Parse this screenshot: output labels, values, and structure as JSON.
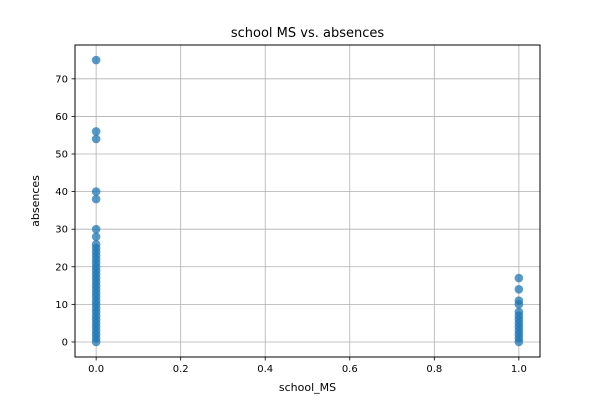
{
  "chart_data": {
    "type": "scatter",
    "title": "school MS vs. absences",
    "xlabel": "school_MS",
    "ylabel": "absences",
    "xlim": [
      -0.05,
      1.05
    ],
    "ylim": [
      -4,
      79
    ],
    "xticks": [
      0.0,
      0.2,
      0.4,
      0.6,
      0.8,
      1.0
    ],
    "xtick_labels": [
      "0.0",
      "0.2",
      "0.4",
      "0.6",
      "0.8",
      "1.0"
    ],
    "yticks": [
      0,
      10,
      20,
      30,
      40,
      50,
      60,
      70
    ],
    "ytick_labels": [
      "0",
      "10",
      "20",
      "30",
      "40",
      "50",
      "60",
      "70"
    ],
    "grid": true,
    "point_color": "#1f77b4",
    "point_alpha": 0.75,
    "series": [
      {
        "x": [
          0,
          1
        ],
        "points_by_x": [
          {
            "x": 0,
            "y": [
              75,
              56,
              54,
              40,
              38,
              30,
              28,
              26,
              25,
              24,
              23,
              22,
              21,
              20,
              19,
              18,
              17,
              16,
              15,
              14,
              13,
              12,
              11,
              10,
              9,
              8,
              7,
              6,
              5,
              4,
              3,
              2,
              1,
              0
            ]
          },
          {
            "x": 1,
            "y": [
              17,
              14,
              11,
              10,
              8,
              7,
              6,
              5,
              4,
              3,
              2,
              1,
              0
            ]
          }
        ]
      }
    ]
  }
}
